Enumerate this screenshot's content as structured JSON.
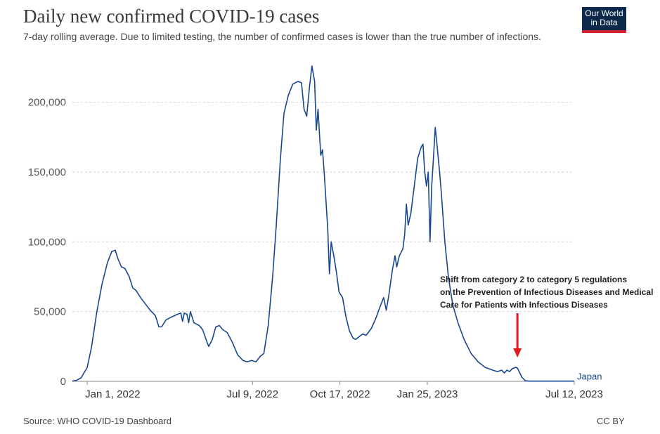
{
  "header": {
    "title": "Daily new confirmed COVID-19 cases",
    "subtitle": "7-day rolling average. Due to limited testing, the number of confirmed cases is lower than the true number of infections.",
    "logo_line1": "Our World",
    "logo_line2": "in Data"
  },
  "footer": {
    "source": "Source: WHO COVID-19 Dashboard",
    "license": "CC BY"
  },
  "annotation": {
    "lines": [
      "Shift from category 2 to category 5 regulations",
      "on the Prevention of Infectious Diseases and Medical",
      "Care for Patients with Infectious Diseases"
    ],
    "arrow_color": "#e0191e",
    "date": "2023-05-08"
  },
  "chart_data": {
    "type": "line",
    "title": "Daily new confirmed COVID-19 cases",
    "subtitle": "7-day rolling average. Due to limited testing, the number of confirmed cases is lower than the true number of infections.",
    "xlabel": "",
    "ylabel": "",
    "x_range": [
      "2021-12-15",
      "2023-07-12"
    ],
    "ylim": [
      0,
      225000
    ],
    "y_ticks": [
      0,
      50000,
      100000,
      150000,
      200000
    ],
    "y_tick_labels": [
      "0",
      "50,000",
      "100,000",
      "150,000",
      "200,000"
    ],
    "x_ticks": [
      "2022-01-01",
      "2022-07-09",
      "2022-10-17",
      "2023-01-25",
      "2023-07-12"
    ],
    "x_tick_labels": [
      "Jan 1, 2022",
      "Jul 9, 2022",
      "Oct 17, 2022",
      "Jan 25, 2023",
      "Jul 12, 2023"
    ],
    "grid": true,
    "series": [
      {
        "name": "Japan",
        "color": "#17478f",
        "points": [
          [
            "2021-12-15",
            200
          ],
          [
            "2021-12-20",
            800
          ],
          [
            "2021-12-25",
            2500
          ],
          [
            "2022-01-01",
            10000
          ],
          [
            "2022-01-06",
            25000
          ],
          [
            "2022-01-12",
            50000
          ],
          [
            "2022-01-18",
            70000
          ],
          [
            "2022-01-24",
            85000
          ],
          [
            "2022-01-29",
            93000
          ],
          [
            "2022-02-02",
            94000
          ],
          [
            "2022-02-05",
            88000
          ],
          [
            "2022-02-09",
            82000
          ],
          [
            "2022-02-13",
            81000
          ],
          [
            "2022-02-18",
            75000
          ],
          [
            "2022-02-22",
            67000
          ],
          [
            "2022-02-26",
            65000
          ],
          [
            "2022-03-03",
            60000
          ],
          [
            "2022-03-09",
            55000
          ],
          [
            "2022-03-14",
            51000
          ],
          [
            "2022-03-20",
            47000
          ],
          [
            "2022-03-24",
            39000
          ],
          [
            "2022-03-27",
            39000
          ],
          [
            "2022-04-01",
            44000
          ],
          [
            "2022-04-07",
            46000
          ],
          [
            "2022-04-14",
            48000
          ],
          [
            "2022-04-18",
            49000
          ],
          [
            "2022-04-20",
            43000
          ],
          [
            "2022-04-22",
            49000
          ],
          [
            "2022-04-25",
            48000
          ],
          [
            "2022-04-27",
            42000
          ],
          [
            "2022-04-29",
            50000
          ],
          [
            "2022-05-03",
            42000
          ],
          [
            "2022-05-09",
            40000
          ],
          [
            "2022-05-13",
            37000
          ],
          [
            "2022-05-18",
            28000
          ],
          [
            "2022-05-20",
            25000
          ],
          [
            "2022-05-24",
            30000
          ],
          [
            "2022-05-28",
            39000
          ],
          [
            "2022-06-01",
            40000
          ],
          [
            "2022-06-05",
            37000
          ],
          [
            "2022-06-10",
            35000
          ],
          [
            "2022-06-16",
            28000
          ],
          [
            "2022-06-22",
            19000
          ],
          [
            "2022-06-28",
            15000
          ],
          [
            "2022-07-03",
            14000
          ],
          [
            "2022-07-08",
            15000
          ],
          [
            "2022-07-13",
            14000
          ],
          [
            "2022-07-18",
            18000
          ],
          [
            "2022-07-22",
            20000
          ],
          [
            "2022-07-27",
            40000
          ],
          [
            "2022-08-01",
            75000
          ],
          [
            "2022-08-05",
            110000
          ],
          [
            "2022-08-10",
            160000
          ],
          [
            "2022-08-14",
            192000
          ],
          [
            "2022-08-19",
            205000
          ],
          [
            "2022-08-24",
            213000
          ],
          [
            "2022-08-30",
            215000
          ],
          [
            "2022-09-03",
            214000
          ],
          [
            "2022-09-06",
            195000
          ],
          [
            "2022-09-09",
            190000
          ],
          [
            "2022-09-12",
            210000
          ],
          [
            "2022-09-15",
            226000
          ],
          [
            "2022-09-18",
            215000
          ],
          [
            "2022-09-20",
            180000
          ],
          [
            "2022-09-22",
            195000
          ],
          [
            "2022-09-25",
            162000
          ],
          [
            "2022-09-27",
            166000
          ],
          [
            "2022-09-29",
            150000
          ],
          [
            "2022-10-01",
            130000
          ],
          [
            "2022-10-03",
            110000
          ],
          [
            "2022-10-05",
            77000
          ],
          [
            "2022-10-07",
            100000
          ],
          [
            "2022-10-10",
            90000
          ],
          [
            "2022-10-13",
            78000
          ],
          [
            "2022-10-16",
            64000
          ],
          [
            "2022-10-20",
            60000
          ],
          [
            "2022-10-24",
            46000
          ],
          [
            "2022-10-28",
            36000
          ],
          [
            "2022-11-01",
            31000
          ],
          [
            "2022-11-04",
            30000
          ],
          [
            "2022-11-08",
            32000
          ],
          [
            "2022-11-12",
            34000
          ],
          [
            "2022-11-16",
            33000
          ],
          [
            "2022-11-22",
            38000
          ],
          [
            "2022-11-27",
            45000
          ],
          [
            "2022-12-01",
            52000
          ],
          [
            "2022-12-06",
            60000
          ],
          [
            "2022-12-09",
            51000
          ],
          [
            "2022-12-12",
            62000
          ],
          [
            "2022-12-16",
            80000
          ],
          [
            "2022-12-19",
            90000
          ],
          [
            "2022-12-21",
            82000
          ],
          [
            "2022-12-24",
            90000
          ],
          [
            "2022-12-28",
            95000
          ],
          [
            "2022-12-30",
            105000
          ],
          [
            "2023-01-01",
            127000
          ],
          [
            "2023-01-03",
            112000
          ],
          [
            "2023-01-06",
            120000
          ],
          [
            "2023-01-10",
            140000
          ],
          [
            "2023-01-14",
            160000
          ],
          [
            "2023-01-18",
            168000
          ],
          [
            "2023-01-20",
            170000
          ],
          [
            "2023-01-22",
            150000
          ],
          [
            "2023-01-24",
            140000
          ],
          [
            "2023-01-26",
            150000
          ],
          [
            "2023-01-28",
            100000
          ],
          [
            "2023-01-30",
            140000
          ],
          [
            "2023-02-01",
            160000
          ],
          [
            "2023-02-03",
            182000
          ],
          [
            "2023-02-05",
            170000
          ],
          [
            "2023-02-08",
            150000
          ],
          [
            "2023-02-10",
            135000
          ],
          [
            "2023-02-14",
            100000
          ],
          [
            "2023-02-18",
            75000
          ],
          [
            "2023-02-23",
            55000
          ],
          [
            "2023-03-01",
            42000
          ],
          [
            "2023-03-08",
            30000
          ],
          [
            "2023-03-16",
            20000
          ],
          [
            "2023-03-24",
            14000
          ],
          [
            "2023-04-01",
            10000
          ],
          [
            "2023-04-10",
            8000
          ],
          [
            "2023-04-15",
            7000
          ],
          [
            "2023-04-20",
            8000
          ],
          [
            "2023-04-23",
            6000
          ],
          [
            "2023-04-26",
            8000
          ],
          [
            "2023-04-29",
            7000
          ],
          [
            "2023-05-02",
            9000
          ],
          [
            "2023-05-06",
            10000
          ],
          [
            "2023-05-08",
            9500
          ],
          [
            "2023-05-10",
            7000
          ],
          [
            "2023-05-13",
            3000
          ],
          [
            "2023-05-17",
            400
          ],
          [
            "2023-05-22",
            150
          ],
          [
            "2023-07-12",
            150
          ]
        ]
      }
    ]
  }
}
